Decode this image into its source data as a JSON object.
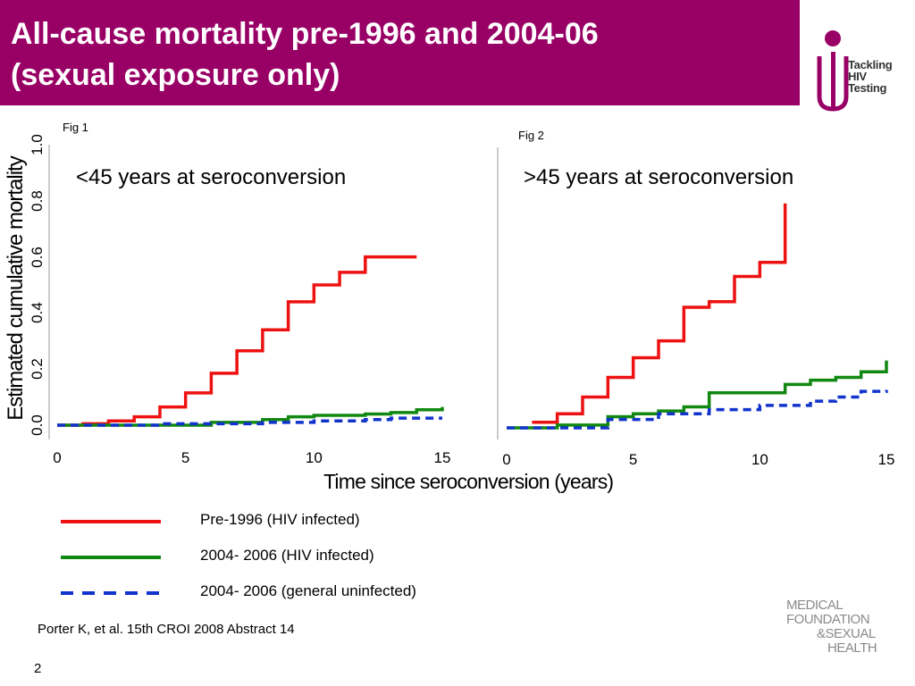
{
  "slide": {
    "title_line1": "All-cause mortality pre-1996 and 2004-06",
    "title_line2": "(sexual exposure only)",
    "page_number": "2",
    "reference": "Porter K, et al. 15th CROI 2008 Abstract 14"
  },
  "logos": {
    "tackling_lines": [
      "Tackling",
      "HIV",
      "Testing"
    ],
    "foundation_lines": [
      "MEDICAL",
      "FOUNDATION",
      "&SEXUAL",
      "HEALTH"
    ],
    "brand_color": "#990066"
  },
  "axis_labels": {
    "ylabel": "Estimated cumulative mortality",
    "xlabel": "Time since seroconversion (years)"
  },
  "chart_data": [
    {
      "type": "line",
      "fig_label": "Fig 1",
      "title": "<45 years at seroconversion",
      "ylim": [
        0,
        1.0
      ],
      "xlim": [
        0,
        15
      ],
      "yticks": [
        "0.0",
        "0.2",
        "0.4",
        "0.6",
        "0.8",
        "1.0"
      ],
      "xticks": [
        "0",
        "5",
        "10",
        "15"
      ],
      "series": [
        {
          "name": "Pre-1996 (HIV infected)",
          "color": "#ee1111",
          "style": "solid",
          "steps": [
            [
              0,
              0
            ],
            [
              1,
              0.005
            ],
            [
              2,
              0.015
            ],
            [
              3,
              0.03
            ],
            [
              4,
              0.065
            ],
            [
              5,
              0.115
            ],
            [
              6,
              0.185
            ],
            [
              7,
              0.265
            ],
            [
              8,
              0.34
            ],
            [
              9,
              0.44
            ],
            [
              10,
              0.5
            ],
            [
              11,
              0.545
            ],
            [
              12,
              0.6
            ],
            [
              14,
              0.6
            ]
          ]
        },
        {
          "name": "2004- 2006 (HIV infected)",
          "color": "#118811",
          "style": "solid",
          "steps": [
            [
              0,
              0
            ],
            [
              6,
              0.01
            ],
            [
              8,
              0.02
            ],
            [
              9,
              0.03
            ],
            [
              10,
              0.035
            ],
            [
              12,
              0.04
            ],
            [
              13,
              0.045
            ],
            [
              14,
              0.055
            ],
            [
              15,
              0.065
            ]
          ]
        },
        {
          "name": "2004- 2006 (general uninfected)",
          "color": "#1133cc",
          "style": "dashed",
          "steps": [
            [
              0,
              0
            ],
            [
              4,
              0.005
            ],
            [
              8,
              0.01
            ],
            [
              10,
              0.015
            ],
            [
              12,
              0.02
            ],
            [
              13,
              0.025
            ],
            [
              15,
              0.025
            ]
          ]
        }
      ]
    },
    {
      "type": "line",
      "fig_label": "Fig 2",
      "title": ">45 years at seroconversion",
      "ylim": [
        0,
        1.0
      ],
      "xlim": [
        0,
        15
      ],
      "yticks": [],
      "xticks": [
        "0",
        "5",
        "10",
        "15"
      ],
      "series": [
        {
          "name": "Pre-1996 (HIV infected)",
          "color": "#ee1111",
          "style": "solid",
          "steps": [
            [
              1,
              0.02
            ],
            [
              2,
              0.05
            ],
            [
              3,
              0.11
            ],
            [
              4,
              0.18
            ],
            [
              5,
              0.25
            ],
            [
              6,
              0.31
            ],
            [
              7,
              0.43
            ],
            [
              8,
              0.45
            ],
            [
              9,
              0.54
            ],
            [
              10,
              0.59
            ],
            [
              11,
              0.8
            ]
          ]
        },
        {
          "name": "2004- 2006 (HIV infected)",
          "color": "#118811",
          "style": "solid",
          "steps": [
            [
              0,
              0
            ],
            [
              2,
              0.01
            ],
            [
              4,
              0.04
            ],
            [
              5,
              0.05
            ],
            [
              6,
              0.06
            ],
            [
              7,
              0.075
            ],
            [
              8,
              0.125
            ],
            [
              11,
              0.155
            ],
            [
              12,
              0.17
            ],
            [
              13,
              0.18
            ],
            [
              14,
              0.2
            ],
            [
              15,
              0.24
            ]
          ]
        },
        {
          "name": "2004- 2006 (general uninfected)",
          "color": "#1133cc",
          "style": "dashed",
          "steps": [
            [
              0,
              0
            ],
            [
              4,
              0.03
            ],
            [
              6,
              0.05
            ],
            [
              8,
              0.065
            ],
            [
              10,
              0.08
            ],
            [
              12,
              0.095
            ],
            [
              13,
              0.11
            ],
            [
              14,
              0.13
            ],
            [
              15,
              0.135
            ]
          ]
        }
      ]
    }
  ],
  "legend": [
    {
      "label": "Pre-1996 (HIV infected)",
      "color": "#ee1111",
      "style": "solid"
    },
    {
      "label": "2004- 2006 (HIV infected)",
      "color": "#118811",
      "style": "solid"
    },
    {
      "label": "2004- 2006 (general uninfected)",
      "color": "#1133cc",
      "style": "dashed"
    }
  ]
}
